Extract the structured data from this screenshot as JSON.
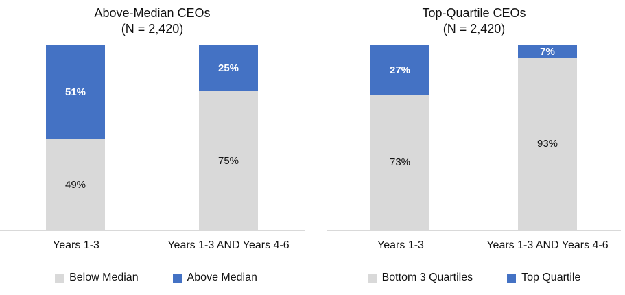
{
  "chart_data": [
    {
      "type": "bar",
      "stacked": true,
      "title": "Above-Median CEOs",
      "subtitle": "(N = 2,420)",
      "categories": [
        "Years 1-3",
        "Years 1-3 AND Years 4-6"
      ],
      "series": [
        {
          "name": "Below Median",
          "values": [
            49,
            75
          ],
          "color": "#d9d9d9"
        },
        {
          "name": "Above Median",
          "values": [
            51,
            25
          ],
          "color": "#4472c4"
        }
      ],
      "value_label_format": "percent",
      "ylim": [
        0,
        100
      ],
      "grid": false,
      "legend_position": "bottom"
    },
    {
      "type": "bar",
      "stacked": true,
      "title": "Top-Quartile CEOs",
      "subtitle": "(N = 2,420)",
      "categories": [
        "Years 1-3",
        "Years 1-3 AND Years 4-6"
      ],
      "series": [
        {
          "name": "Bottom 3 Quartiles",
          "values": [
            73,
            93
          ],
          "color": "#d9d9d9"
        },
        {
          "name": "Top Quartile",
          "values": [
            27,
            7
          ],
          "color": "#4472c4"
        }
      ],
      "value_label_format": "percent",
      "ylim": [
        0,
        100
      ],
      "grid": false,
      "legend_position": "bottom"
    }
  ],
  "colors": {
    "bar_blue": "#4472c4",
    "bar_gray": "#d9d9d9",
    "axis_line": "#d9d9d9",
    "label_on_blue": "#ffffff",
    "label_on_gray": "#111111",
    "background": "#ffffff"
  }
}
